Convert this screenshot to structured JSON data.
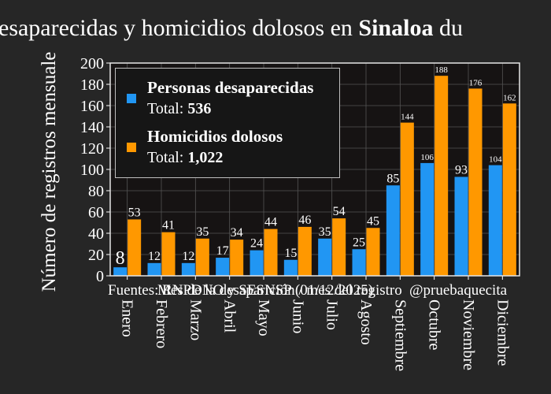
{
  "chart_data": {
    "type": "bar",
    "title_prefix": "esaparecidas y homicidios dolosos en ",
    "title_bold": "Sinaloa",
    "title_suffix": " du",
    "ylabel": "Número de registros mensuale",
    "source_text": "Fuentes: RNPDNO y SESNSP (01/12/2025)",
    "overlay_text": "Mes de la desaparición / mes del registro",
    "watermark_text": "@pruebaquecita",
    "ylim": [
      0,
      200
    ],
    "yticks": [
      0,
      20,
      40,
      60,
      80,
      100,
      120,
      140,
      160,
      180,
      200
    ],
    "grid": true,
    "legend_position": "top-left",
    "categories": [
      "Enero",
      "Febrero",
      "Marzo",
      "Abril",
      "Mayo",
      "Junio",
      "Julio",
      "Agosto",
      "Septiembre",
      "Octubre",
      "Noviembre",
      "Diciembre"
    ],
    "series": [
      {
        "name": "Personas desaparecidas",
        "total_label": "Total:",
        "total_value": "536",
        "color": "#2196f3",
        "values": [
          8,
          12,
          12,
          17,
          24,
          15,
          35,
          25,
          85,
          106,
          93,
          104
        ],
        "labels": [
          "8",
          "12",
          "12",
          "17",
          "24",
          "15",
          "35",
          "25",
          "85",
          "106",
          "93",
          "104"
        ]
      },
      {
        "name": "Homicidios dolosos",
        "total_label": "Total:",
        "total_value": "1,022",
        "color": "#ff9800",
        "values": [
          53,
          41,
          35,
          34,
          44,
          46,
          54,
          45,
          144,
          188,
          176,
          162
        ],
        "labels": [
          "53",
          "41",
          "35",
          "34",
          "44",
          "46",
          "54",
          "45",
          "144",
          "188",
          "176",
          "162"
        ]
      }
    ]
  }
}
